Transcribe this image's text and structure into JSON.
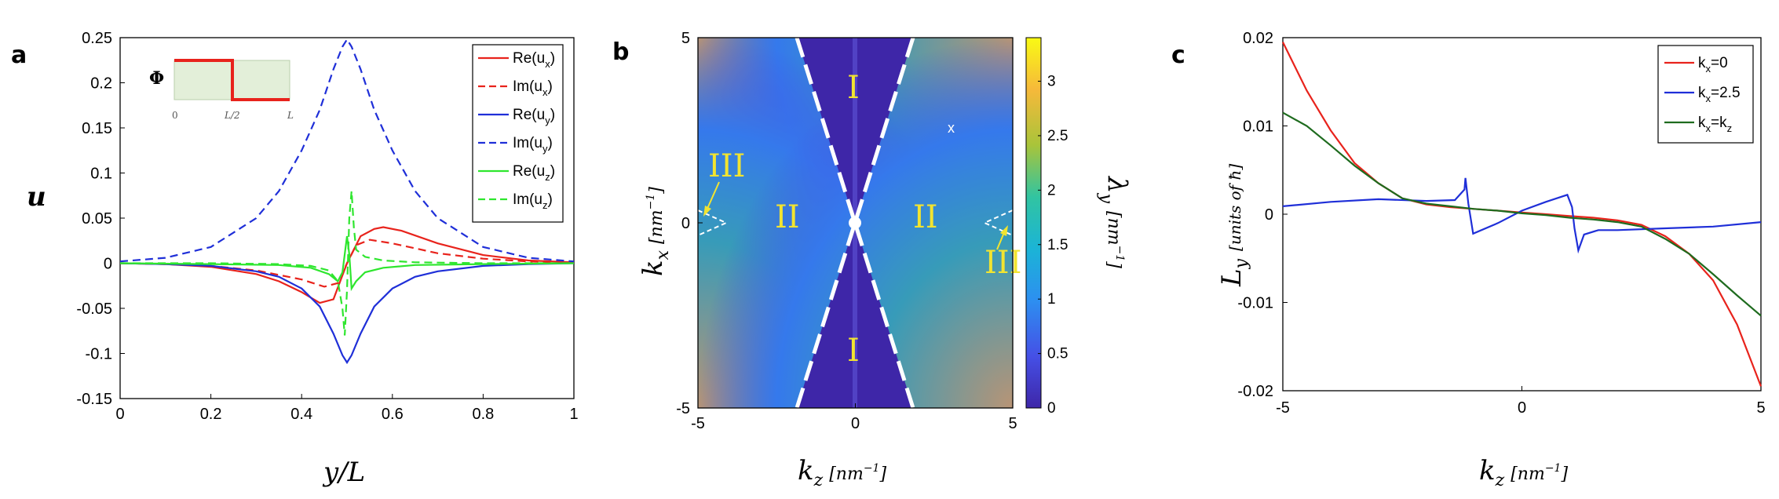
{
  "panel_labels": {
    "a": "a",
    "b": "b",
    "c": "c"
  },
  "chart_data": [
    {
      "panel": "a",
      "type": "line",
      "xlabel": "y/L",
      "ylabel": "u",
      "xlim": [
        0,
        1
      ],
      "ylim": [
        -0.15,
        0.25
      ],
      "xticks": [
        "0",
        "0.2",
        "0.4",
        "0.6",
        "0.8",
        "1"
      ],
      "yticks": [
        "-0.15",
        "-0.1",
        "-0.05",
        "0",
        "0.05",
        "0.1",
        "0.15",
        "0.2",
        "0.25"
      ],
      "legend_position": "top-right",
      "series": [
        {
          "name": "Re(u_x)",
          "legend_main": "Re(u",
          "legend_sub": "x",
          "legend_end": ")",
          "color": "#e8231c",
          "dash": "solid",
          "x": [
            0,
            0.1,
            0.2,
            0.3,
            0.35,
            0.4,
            0.44,
            0.47,
            0.5,
            0.53,
            0.56,
            0.58,
            0.62,
            0.7,
            0.8,
            0.9,
            1.0
          ],
          "y": [
            0,
            -0.001,
            -0.004,
            -0.012,
            -0.02,
            -0.032,
            -0.044,
            -0.04,
            0.0,
            0.03,
            0.038,
            0.04,
            0.036,
            0.022,
            0.009,
            0.003,
            0.001
          ]
        },
        {
          "name": "Im(u_x)",
          "legend_main": "Im(u",
          "legend_sub": "x",
          "legend_end": ")",
          "color": "#e8231c",
          "dash": "dashed",
          "x": [
            0,
            0.1,
            0.2,
            0.3,
            0.4,
            0.45,
            0.48,
            0.5,
            0.52,
            0.55,
            0.6,
            0.7,
            0.8,
            0.9,
            1.0
          ],
          "y": [
            0,
            -0.001,
            -0.003,
            -0.008,
            -0.018,
            -0.026,
            -0.022,
            0.0,
            0.02,
            0.026,
            0.022,
            0.011,
            0.005,
            0.002,
            0.0
          ]
        },
        {
          "name": "Re(u_y)",
          "legend_main": "Re(u",
          "legend_sub": "y",
          "legend_end": ")",
          "color": "#1f2fd8",
          "dash": "solid",
          "x": [
            0,
            0.1,
            0.2,
            0.3,
            0.35,
            0.4,
            0.44,
            0.47,
            0.49,
            0.5,
            0.51,
            0.53,
            0.56,
            0.6,
            0.65,
            0.7,
            0.8,
            0.9,
            1.0
          ],
          "y": [
            0,
            -0.001,
            -0.003,
            -0.009,
            -0.015,
            -0.028,
            -0.048,
            -0.078,
            -0.102,
            -0.11,
            -0.102,
            -0.078,
            -0.048,
            -0.028,
            -0.015,
            -0.009,
            -0.003,
            -0.001,
            0
          ]
        },
        {
          "name": "Im(u_y)",
          "legend_main": "Im(u",
          "legend_sub": "y",
          "legend_end": ")",
          "color": "#1f2fd8",
          "dash": "dashed",
          "x": [
            0,
            0.1,
            0.2,
            0.3,
            0.35,
            0.4,
            0.44,
            0.47,
            0.49,
            0.5,
            0.51,
            0.53,
            0.56,
            0.6,
            0.65,
            0.7,
            0.8,
            0.9,
            1.0
          ],
          "y": [
            0.002,
            0.006,
            0.018,
            0.05,
            0.08,
            0.125,
            0.17,
            0.215,
            0.24,
            0.248,
            0.24,
            0.215,
            0.17,
            0.125,
            0.08,
            0.05,
            0.018,
            0.006,
            0.002
          ]
        },
        {
          "name": "Re(u_z)",
          "legend_main": "Re(u",
          "legend_sub": "z",
          "legend_end": ")",
          "color": "#2ee62e",
          "dash": "solid",
          "x": [
            0,
            0.2,
            0.35,
            0.42,
            0.46,
            0.48,
            0.49,
            0.5,
            0.505,
            0.51,
            0.52,
            0.54,
            0.58,
            0.65,
            0.8,
            1.0
          ],
          "y": [
            0,
            -0.001,
            -0.002,
            -0.005,
            -0.012,
            -0.02,
            -0.01,
            0.03,
            0.01,
            -0.028,
            -0.02,
            -0.01,
            -0.005,
            -0.002,
            -0.001,
            0
          ]
        },
        {
          "name": "Im(u_z)",
          "legend_main": "Im(u",
          "legend_sub": "z",
          "legend_end": ")",
          "color": "#2ee62e",
          "dash": "dashed",
          "x": [
            0,
            0.2,
            0.35,
            0.42,
            0.46,
            0.48,
            0.49,
            0.495,
            0.5,
            0.505,
            0.51,
            0.515,
            0.52,
            0.54,
            0.58,
            0.65,
            0.8,
            1.0
          ],
          "y": [
            0,
            0,
            -0.001,
            -0.003,
            -0.008,
            -0.02,
            -0.05,
            -0.08,
            -0.03,
            0.05,
            0.08,
            0.04,
            0.015,
            0.007,
            0.003,
            0.001,
            0,
            0
          ]
        }
      ],
      "inset": {
        "label": "Φ",
        "xticks": [
          "0",
          "L/2",
          "L"
        ],
        "step": {
          "high": 1,
          "low": 0,
          "jump_at": 0.5
        }
      }
    },
    {
      "panel": "b",
      "type": "heatmap",
      "xlabel": "k",
      "xlabel_sub": "z",
      "xunit": "[nm",
      "xunit_sup": "−1",
      "xunit_end": "]",
      "ylabel": "k",
      "ylabel_sub": "x",
      "yunit": "[nm",
      "yunit_sup": "−1",
      "yunit_end": "]",
      "xlim": [
        -5,
        5
      ],
      "ylim": [
        -5,
        5
      ],
      "xticks": [
        "-5",
        "0",
        "5"
      ],
      "yticks": [
        "5",
        "0",
        "-5"
      ],
      "colorbar": {
        "label": "λ",
        "label_sub": "y",
        "unit": "[nm",
        "unit_sup": "−1",
        "unit_end": "]",
        "range": [
          0,
          3.4
        ],
        "ticks": [
          "0",
          "0.5",
          "1",
          "1.5",
          "2",
          "2.5",
          "3"
        ],
        "colors": [
          "#3e26a8",
          "#4550e6",
          "#2d8ff0",
          "#1bb4d6",
          "#31c4a1",
          "#a9c43a",
          "#f6b93a",
          "#f9fa14"
        ]
      },
      "regions": [
        "I",
        "I",
        "II",
        "II",
        "III",
        "III"
      ],
      "marker": "x",
      "boundary_color": "#ffffff"
    },
    {
      "panel": "c",
      "type": "line",
      "xlabel": "k",
      "xlabel_sub": "z",
      "xunit": "[nm",
      "xunit_sup": "−1",
      "xunit_end": "]",
      "ylabel": "L",
      "ylabel_sub": "y",
      "yunit": "[units of ħ]",
      "xlim": [
        -5,
        5
      ],
      "ylim": [
        -0.02,
        0.02
      ],
      "xticks": [
        "-5",
        "0",
        "5"
      ],
      "yticks": [
        "0.02",
        "0.01",
        "0",
        "-0.01",
        "-0.02"
      ],
      "legend_position": "top-right",
      "series": [
        {
          "name": "k_x=0",
          "legend_main": "k",
          "legend_sub": "x",
          "legend_end": "=0",
          "color": "#e8231c",
          "x": [
            -5,
            -4.5,
            -4,
            -3.5,
            -3,
            -2.5,
            -2,
            -1.5,
            -1,
            -0.5,
            0,
            0.5,
            1,
            1.5,
            2,
            2.5,
            3,
            3.5,
            4,
            4.5,
            5
          ],
          "y": [
            0.0195,
            0.014,
            0.0095,
            0.0058,
            0.0035,
            0.0018,
            0.0011,
            0.0008,
            0.0006,
            0.0004,
            0.0002,
            0.0,
            -0.0002,
            -0.0004,
            -0.0007,
            -0.0012,
            -0.0025,
            -0.0045,
            -0.0075,
            -0.0125,
            -0.0195
          ]
        },
        {
          "name": "k_x=2.5",
          "legend_main": "k",
          "legend_sub": "x",
          "legend_end": "=2.5",
          "color": "#1f2fd8",
          "x": [
            -5,
            -4,
            -3,
            -2,
            -1.4,
            -1.2,
            -1.18,
            -1.12,
            -1.02,
            -0.5,
            0,
            0.5,
            0.95,
            1.05,
            1.1,
            1.18,
            1.3,
            1.6,
            2,
            3,
            4,
            5
          ],
          "y": [
            0.0009,
            0.0014,
            0.0017,
            0.0015,
            0.0016,
            0.0028,
            0.0041,
            0.0012,
            -0.0022,
            -0.001,
            0.0004,
            0.0014,
            0.0022,
            0.0008,
            -0.0016,
            -0.0041,
            -0.0023,
            -0.0018,
            -0.0018,
            -0.0016,
            -0.0014,
            -0.0009
          ]
        },
        {
          "name": "k_x=k_z",
          "legend_main": "k",
          "legend_sub": "x",
          "legend_end": "=k",
          "legend_sub2": "z",
          "color": "#1e6b1e",
          "x": [
            -5,
            -4.5,
            -4,
            -3.5,
            -3,
            -2.5,
            -2,
            -1.5,
            -1,
            -0.5,
            0,
            0.5,
            1,
            1.5,
            2,
            2.5,
            3,
            3.5,
            4,
            4.5,
            5
          ],
          "y": [
            0.0115,
            0.01,
            0.0078,
            0.0055,
            0.0035,
            0.0018,
            0.0012,
            0.0009,
            0.0006,
            0.0004,
            0.0001,
            -0.0001,
            -0.0004,
            -0.0006,
            -0.0009,
            -0.0014,
            -0.0028,
            -0.0045,
            -0.0068,
            -0.0092,
            -0.0115
          ]
        }
      ]
    }
  ]
}
